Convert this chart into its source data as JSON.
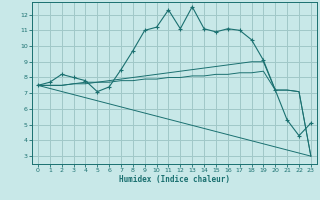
{
  "xlabel": "Humidex (Indice chaleur)",
  "background_color": "#c8e8e8",
  "grid_color": "#a0c8c8",
  "line_color": "#1a7070",
  "xlim": [
    -0.5,
    23.5
  ],
  "ylim": [
    2.5,
    12.8
  ],
  "yticks": [
    3,
    4,
    5,
    6,
    7,
    8,
    9,
    10,
    11,
    12
  ],
  "xticks": [
    0,
    1,
    2,
    3,
    4,
    5,
    6,
    7,
    8,
    9,
    10,
    11,
    12,
    13,
    14,
    15,
    16,
    17,
    18,
    19,
    20,
    21,
    22,
    23
  ],
  "series": [
    {
      "x": [
        0,
        1,
        2,
        3,
        4,
        5,
        6,
        7,
        8,
        9,
        10,
        11,
        12,
        13,
        14,
        15,
        16,
        17,
        18,
        19,
        20,
        21,
        22,
        23
      ],
      "y": [
        7.5,
        7.7,
        8.2,
        8.0,
        7.8,
        7.1,
        7.4,
        8.5,
        9.7,
        11.0,
        11.2,
        12.3,
        11.1,
        12.5,
        11.1,
        10.9,
        11.1,
        11.0,
        10.4,
        9.1,
        7.2,
        5.3,
        4.3,
        5.1
      ],
      "marker": true
    },
    {
      "x": [
        0,
        1,
        2,
        3,
        4,
        5,
        6,
        7,
        8,
        9,
        10,
        11,
        12,
        13,
        14,
        15,
        16,
        17,
        18,
        19,
        20,
        21,
        22,
        23
      ],
      "y": [
        7.5,
        7.5,
        7.5,
        7.6,
        7.7,
        7.7,
        7.8,
        7.9,
        8.0,
        8.1,
        8.2,
        8.3,
        8.4,
        8.5,
        8.6,
        8.7,
        8.8,
        8.9,
        9.0,
        9.0,
        7.2,
        7.2,
        7.1,
        3.0
      ],
      "marker": false
    },
    {
      "x": [
        0,
        1,
        2,
        3,
        4,
        5,
        6,
        7,
        8,
        9,
        10,
        11,
        12,
        13,
        14,
        15,
        16,
        17,
        18,
        19,
        20,
        21,
        22,
        23
      ],
      "y": [
        7.5,
        7.5,
        7.5,
        7.6,
        7.6,
        7.7,
        7.7,
        7.8,
        7.8,
        7.9,
        7.9,
        8.0,
        8.0,
        8.1,
        8.1,
        8.2,
        8.2,
        8.3,
        8.3,
        8.4,
        7.2,
        7.2,
        7.1,
        3.0
      ],
      "marker": false
    },
    {
      "x": [
        0,
        23
      ],
      "y": [
        7.5,
        3.0
      ],
      "marker": false
    }
  ]
}
